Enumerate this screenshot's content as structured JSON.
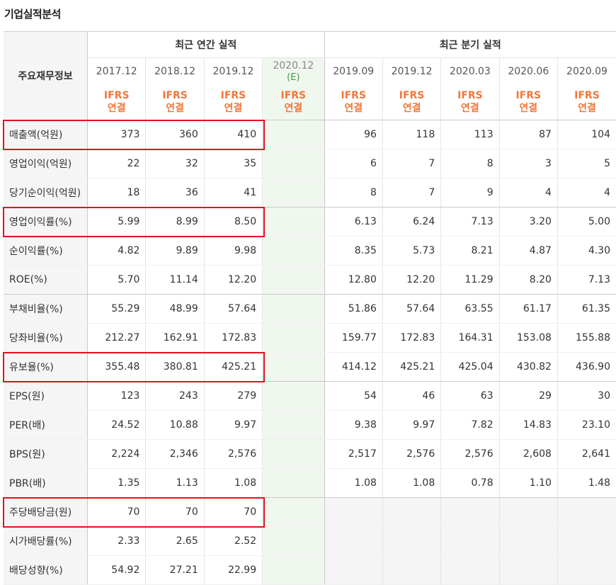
{
  "title": "기업실적분석",
  "header": {
    "label_col": "주요재무정보",
    "group_annual": "최근 연간 실적",
    "group_quarter": "최근 분기 실적",
    "annual_periods": [
      "2017.12",
      "2018.12",
      "2019.12"
    ],
    "estimate_period": {
      "year": "2020.12",
      "mark": "(E)"
    },
    "quarter_periods": [
      "2019.09",
      "2019.12",
      "2020.03",
      "2020.06",
      "2020.09"
    ],
    "basis": {
      "standard": "IFRS",
      "type": "연결"
    }
  },
  "rows": [
    {
      "label": "매출액(억원)",
      "annual": [
        "373",
        "360",
        "410"
      ],
      "estimate": "",
      "quarter": [
        "96",
        "118",
        "113",
        "87",
        "104"
      ]
    },
    {
      "label": "영업이익(억원)",
      "annual": [
        "22",
        "32",
        "35"
      ],
      "estimate": "",
      "quarter": [
        "6",
        "7",
        "8",
        "3",
        "5"
      ]
    },
    {
      "label": "당기순이익(억원)",
      "annual": [
        "18",
        "36",
        "41"
      ],
      "estimate": "",
      "quarter": [
        "8",
        "7",
        "9",
        "4",
        "4"
      ]
    },
    {
      "label": "영업이익률(%)",
      "annual": [
        "5.99",
        "8.99",
        "8.50"
      ],
      "estimate": "",
      "quarter": [
        "6.13",
        "6.24",
        "7.13",
        "3.20",
        "5.00"
      ]
    },
    {
      "label": "순이익률(%)",
      "annual": [
        "4.82",
        "9.89",
        "9.98"
      ],
      "estimate": "",
      "quarter": [
        "8.35",
        "5.73",
        "8.21",
        "4.87",
        "4.30"
      ]
    },
    {
      "label": "ROE(%)",
      "annual": [
        "5.70",
        "11.14",
        "12.20"
      ],
      "estimate": "",
      "quarter": [
        "12.80",
        "12.20",
        "11.29",
        "8.20",
        "7.13"
      ]
    },
    {
      "label": "부채비율(%)",
      "annual": [
        "55.29",
        "48.99",
        "57.64"
      ],
      "estimate": "",
      "quarter": [
        "51.86",
        "57.64",
        "63.55",
        "61.17",
        "61.35"
      ]
    },
    {
      "label": "당좌비율(%)",
      "annual": [
        "212.27",
        "162.91",
        "172.83"
      ],
      "estimate": "",
      "quarter": [
        "159.77",
        "172.83",
        "164.31",
        "153.08",
        "155.88"
      ]
    },
    {
      "label": "유보율(%)",
      "annual": [
        "355.48",
        "380.81",
        "425.21"
      ],
      "estimate": "",
      "quarter": [
        "414.12",
        "425.21",
        "425.04",
        "430.82",
        "436.90"
      ]
    },
    {
      "label": "EPS(원)",
      "annual": [
        "123",
        "243",
        "279"
      ],
      "estimate": "",
      "quarter": [
        "54",
        "46",
        "63",
        "29",
        "30"
      ]
    },
    {
      "label": "PER(배)",
      "annual": [
        "24.52",
        "10.88",
        "9.97"
      ],
      "estimate": "",
      "quarter": [
        "9.38",
        "9.97",
        "7.82",
        "14.83",
        "23.10"
      ]
    },
    {
      "label": "BPS(원)",
      "annual": [
        "2,224",
        "2,346",
        "2,576"
      ],
      "estimate": "",
      "quarter": [
        "2,517",
        "2,576",
        "2,576",
        "2,608",
        "2,641"
      ]
    },
    {
      "label": "PBR(배)",
      "annual": [
        "1.35",
        "1.13",
        "1.08"
      ],
      "estimate": "",
      "quarter": [
        "1.08",
        "1.08",
        "0.78",
        "1.10",
        "1.48"
      ]
    },
    {
      "label": "주당배당금(원)",
      "annual": [
        "70",
        "70",
        "70"
      ],
      "estimate": "",
      "quarter": []
    },
    {
      "label": "시가배당률(%)",
      "annual": [
        "2.33",
        "2.65",
        "2.52"
      ],
      "estimate": "",
      "quarter": []
    },
    {
      "label": "배당성향(%)",
      "annual": [
        "54.92",
        "27.21",
        "22.99"
      ],
      "estimate": "",
      "quarter": []
    }
  ],
  "group_ends": [
    2,
    5,
    8,
    12
  ],
  "highlighted_rows": [
    0,
    3,
    8,
    13
  ],
  "colors": {
    "ifrs": "#f0783c",
    "estimate_bg": "#f0f7ee",
    "estimate_mark": "#3f9a43",
    "label_bg": "#f5f5f5",
    "highlight": "#e5101e"
  }
}
